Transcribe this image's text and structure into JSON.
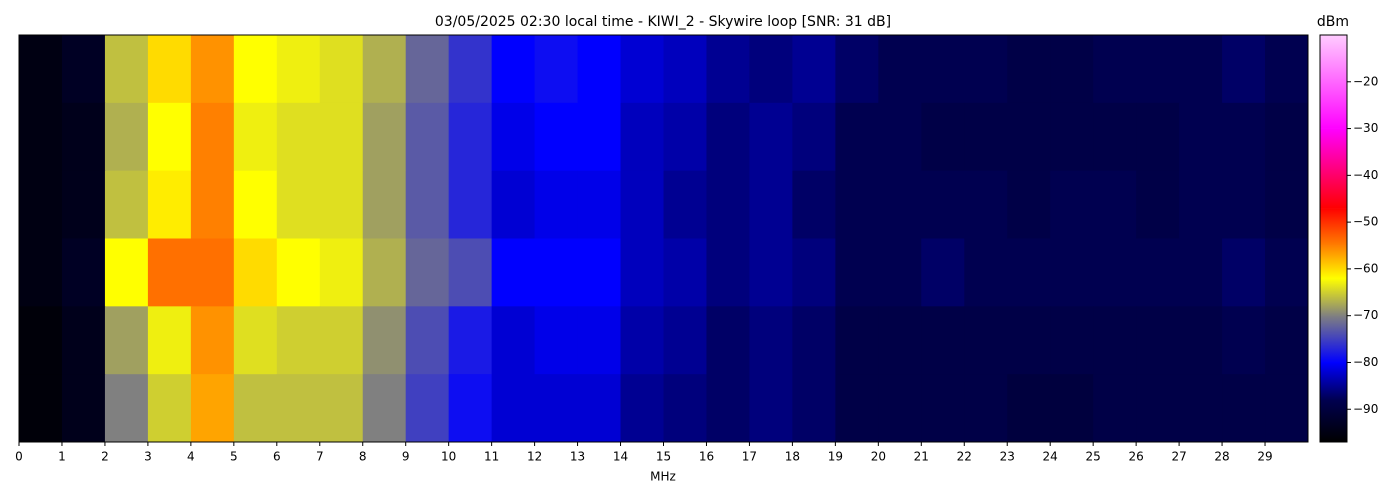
{
  "chart_data": {
    "type": "heatmap",
    "title": "03/05/2025 02:30 local time - KIWI_2 - Skywire loop [SNR: 31 dB]",
    "x_label": "MHz",
    "colorbar_label": "dBm",
    "xlim": [
      0,
      30
    ],
    "xticks": [
      0,
      1,
      2,
      3,
      4,
      5,
      6,
      7,
      8,
      9,
      10,
      11,
      12,
      13,
      14,
      15,
      16,
      17,
      18,
      19,
      20,
      21,
      22,
      23,
      24,
      25,
      26,
      27,
      28,
      29
    ],
    "bins": [
      0,
      1,
      2,
      3,
      4,
      5,
      6,
      7,
      8,
      9,
      10,
      11,
      12,
      13,
      14,
      15,
      16,
      17,
      18,
      19,
      20,
      21,
      22,
      23,
      24,
      25,
      26,
      27,
      28,
      29,
      30
    ],
    "z": [
      [
        -95,
        -93,
        -66,
        -60,
        -56,
        -62,
        -63,
        -64,
        -67,
        -72,
        -76,
        -80,
        -79,
        -80,
        -82,
        -83,
        -85,
        -86,
        -85,
        -87,
        -88,
        -88,
        -88,
        -89,
        -89,
        -88,
        -88,
        -88,
        -87,
        -88
      ],
      [
        -95,
        -94,
        -67,
        -62,
        -55,
        -63,
        -64,
        -64,
        -68,
        -73,
        -77,
        -81,
        -80,
        -80,
        -83,
        -84,
        -86,
        -85,
        -86,
        -88,
        -88,
        -89,
        -89,
        -89,
        -89,
        -89,
        -89,
        -88,
        -88,
        -89
      ],
      [
        -95,
        -94,
        -66,
        -61,
        -55,
        -62,
        -64,
        -64,
        -68,
        -73,
        -77,
        -82,
        -81,
        -81,
        -83,
        -85,
        -86,
        -85,
        -87,
        -88,
        -88,
        -88,
        -88,
        -89,
        -88,
        -88,
        -89,
        -88,
        -88,
        -89
      ],
      [
        -95,
        -93,
        -62,
        -54,
        -54,
        -60,
        -62,
        -63,
        -67,
        -72,
        -74,
        -80,
        -80,
        -80,
        -83,
        -84,
        -86,
        -85,
        -86,
        -88,
        -88,
        -87,
        -88,
        -88,
        -88,
        -88,
        -88,
        -88,
        -87,
        -88
      ],
      [
        -96,
        -94,
        -68,
        -63,
        -56,
        -64,
        -65,
        -65,
        -69,
        -74,
        -78,
        -82,
        -81,
        -81,
        -84,
        -85,
        -87,
        -86,
        -87,
        -89,
        -89,
        -89,
        -89,
        -89,
        -89,
        -89,
        -89,
        -89,
        -88,
        -89
      ],
      [
        -96,
        -94,
        -70,
        -65,
        -57,
        -66,
        -66,
        -66,
        -70,
        -75,
        -79,
        -82,
        -82,
        -82,
        -85,
        -86,
        -87,
        -86,
        -87,
        -89,
        -89,
        -89,
        -89,
        -90,
        -90,
        -89,
        -89,
        -89,
        -89,
        -89
      ]
    ],
    "clim": [
      -97,
      -10
    ],
    "colorscale": [
      [
        -97,
        "#000000"
      ],
      [
        -88,
        "#000050"
      ],
      [
        -80,
        "#0000ff"
      ],
      [
        -70,
        "#808080"
      ],
      [
        -62,
        "#ffff00"
      ],
      [
        -55,
        "#ff8000"
      ],
      [
        -47,
        "#ff0000"
      ],
      [
        -30,
        "#ff00ff"
      ],
      [
        -10,
        "#ffccff"
      ]
    ],
    "cticks": [
      {
        "value": -90,
        "label": "−90"
      },
      {
        "value": -80,
        "label": "−80"
      },
      {
        "value": -70,
        "label": "−70"
      },
      {
        "value": -60,
        "label": "−60"
      },
      {
        "value": -50,
        "label": "−50"
      },
      {
        "value": -40,
        "label": "−40"
      },
      {
        "value": -30,
        "label": "−30"
      },
      {
        "value": -20,
        "label": "−20"
      }
    ]
  }
}
